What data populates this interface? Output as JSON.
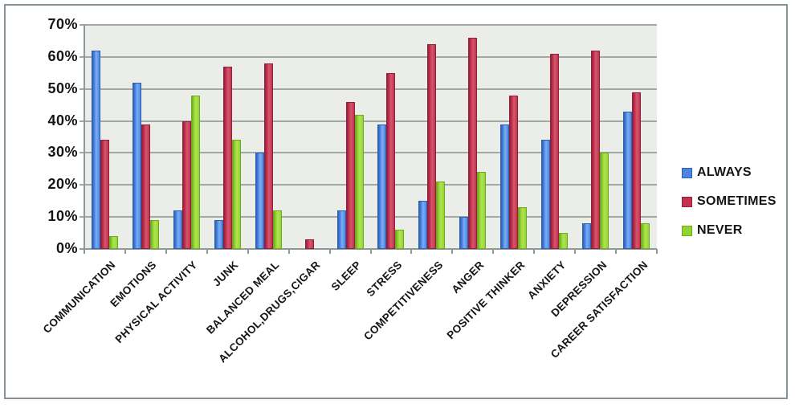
{
  "chart_data": {
    "type": "bar",
    "title": "",
    "xlabel": "",
    "ylabel": "",
    "categories": [
      "COMMUNICATION",
      "EMOTIONS",
      "PHYSICAL ACTIVITY",
      "JUNK",
      "BALANCED MEAL",
      "ALCOHOL,DRUGS,CIGAR",
      "SLEEP",
      "STRESS",
      "COMPETITIVENESS",
      "ANGER",
      "POSITIVE THINKER",
      "ANXIETY",
      "DEPRESSION",
      "CAREER SATISFACTION"
    ],
    "series": [
      {
        "name": "ALWAYS",
        "color": "#4a85e1",
        "color_light": "#7cadf2",
        "color_dark": "#2d5fae",
        "values": [
          62,
          52,
          12,
          9,
          30,
          0,
          12,
          39,
          15,
          10,
          39,
          34,
          8,
          43
        ]
      },
      {
        "name": "SOMETIMES",
        "color": "#c23350",
        "color_light": "#d4586e",
        "color_dark": "#931f3b",
        "values": [
          34,
          39,
          40,
          57,
          58,
          3,
          46,
          55,
          64,
          66,
          48,
          61,
          62,
          49
        ]
      },
      {
        "name": "NEVER",
        "color": "#93d432",
        "color_light": "#aee455",
        "color_dark": "#6fa91e",
        "values": [
          4,
          9,
          48,
          34,
          12,
          0,
          42,
          6,
          21,
          24,
          13,
          5,
          30,
          8
        ]
      }
    ],
    "y_ticks": [
      "0%",
      "10%",
      "20%",
      "30%",
      "40%",
      "50%",
      "60%",
      "70%"
    ],
    "ylim": [
      0,
      70
    ],
    "y_step": 10,
    "grid": true,
    "legend_position": "right",
    "legend_items": [
      "ALWAYS",
      "SOMETIMES",
      "NEVER"
    ]
  },
  "colors": {
    "plot_bg": "#ebede9",
    "gridline": "#a2a8a4",
    "axis": "#8f9995",
    "frame_border": "#84929a",
    "text": "#151515"
  }
}
